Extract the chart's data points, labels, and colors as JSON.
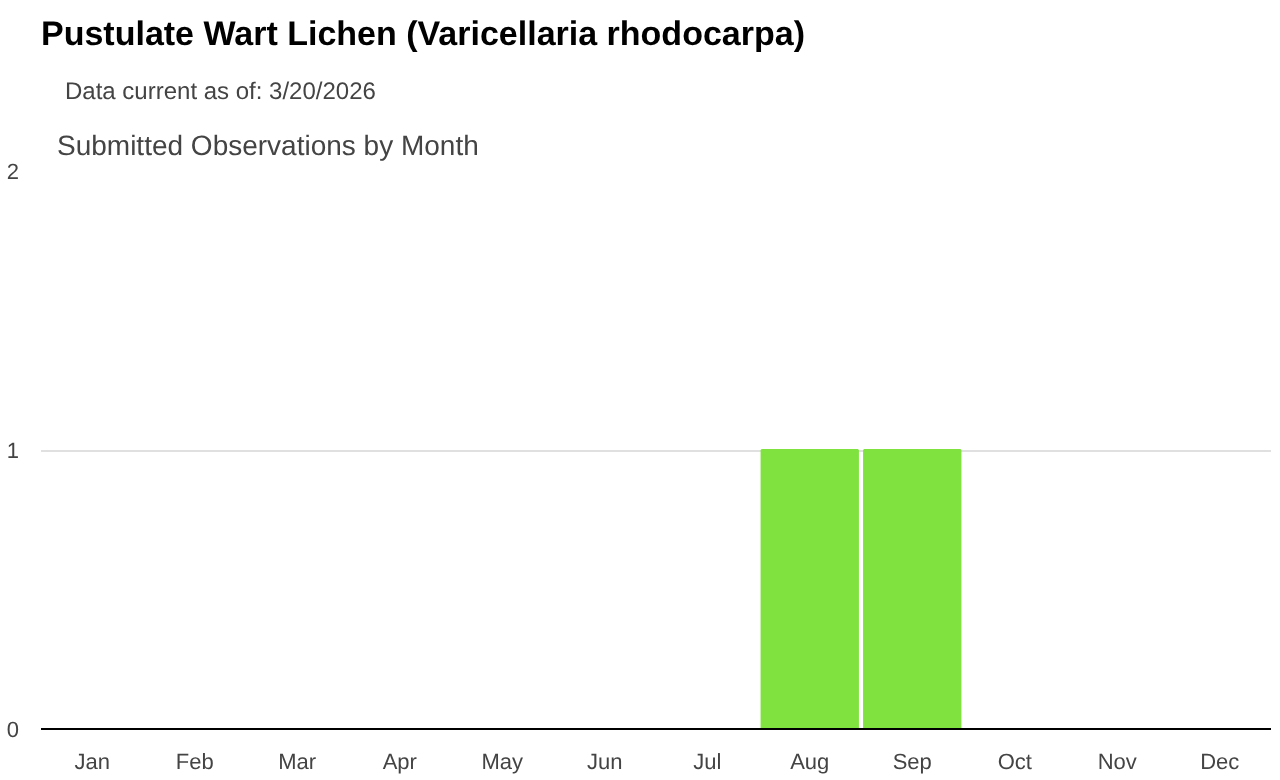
{
  "chart_data": {
    "type": "bar",
    "title": "Pustulate Wart Lichen   (Varicellaria rhodocarpa)",
    "subtitle": "Data current as of: 3/20/2026",
    "annotations": [
      "Submitted Observations by Month"
    ],
    "categories": [
      "Jan",
      "Feb",
      "Mar",
      "Apr",
      "May",
      "Jun",
      "Jul",
      "Aug",
      "Sep",
      "Oct",
      "Nov",
      "Dec"
    ],
    "values": [
      0,
      0,
      0,
      0,
      0,
      0,
      0,
      1,
      1,
      0,
      0,
      0
    ],
    "color": "#80e23f",
    "ylim": [
      0,
      2
    ],
    "yticks": [
      0,
      1,
      2
    ],
    "grid": "y"
  }
}
